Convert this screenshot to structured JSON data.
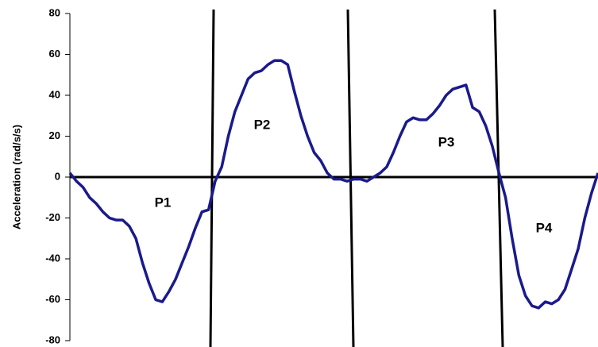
{
  "chart_data": {
    "type": "line",
    "y_label": "Acceleration (rad/s/s)",
    "ylim": [
      -80,
      80
    ],
    "yticks": [
      -80,
      -60,
      -40,
      -20,
      0,
      20,
      40,
      60,
      80
    ],
    "color": "#1a1a8c",
    "annotations": [
      "P1",
      "P2",
      "P3",
      "P4"
    ],
    "values": [
      2,
      -2,
      -5,
      -10,
      -13,
      -17,
      -20,
      -21,
      -21,
      -24,
      -30,
      -42,
      -52,
      -60,
      -61,
      -56,
      -50,
      -42,
      -34,
      -25,
      -17,
      -16,
      -2,
      5,
      20,
      32,
      40,
      48,
      51,
      52,
      55,
      57,
      57,
      55,
      42,
      30,
      20,
      12,
      8,
      2,
      -1,
      -1,
      -2,
      -1,
      -1,
      -2,
      0,
      2,
      5,
      12,
      20,
      27,
      29,
      28,
      28,
      31,
      35,
      40,
      43,
      44,
      45,
      34,
      32,
      25,
      15,
      2,
      -10,
      -30,
      -48,
      -58,
      -63,
      -64,
      -61,
      -62,
      -60,
      -55,
      -45,
      -35,
      -20,
      -8,
      2
    ]
  }
}
